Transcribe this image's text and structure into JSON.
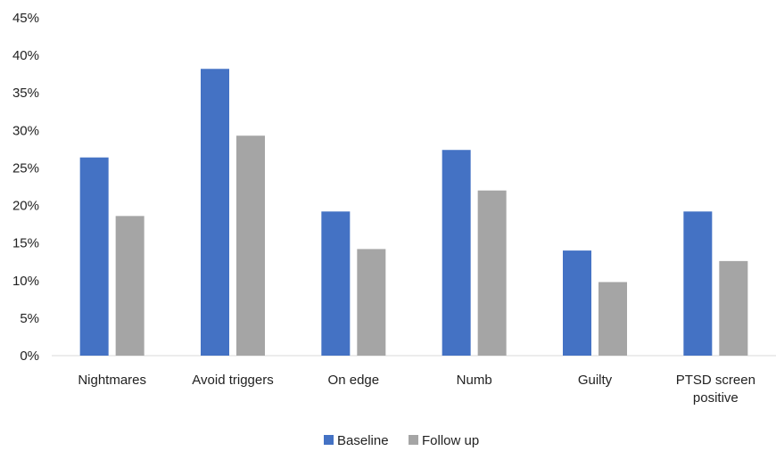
{
  "chart_data": {
    "type": "bar",
    "title": "",
    "xlabel": "",
    "ylabel": "",
    "categories": [
      [
        "Nightmares"
      ],
      [
        "Avoid triggers"
      ],
      [
        "On edge"
      ],
      [
        "Numb"
      ],
      [
        "Guilty"
      ],
      [
        "PTSD screen",
        "positive"
      ]
    ],
    "series": [
      {
        "name": "Baseline",
        "color": "#4472C4",
        "values": [
          26.4,
          38.2,
          19.2,
          27.4,
          14.0,
          19.2
        ]
      },
      {
        "name": "Follow up",
        "color": "#A5A5A5",
        "values": [
          18.6,
          29.3,
          14.2,
          22.0,
          9.8,
          12.6
        ]
      }
    ],
    "ylim": [
      0,
      45
    ],
    "yticks": [
      "0%",
      "5%",
      "10%",
      "15%",
      "20%",
      "25%",
      "30%",
      "35%",
      "40%",
      "45%"
    ],
    "grid": false,
    "legend": "bottom-center",
    "axis_color": "#D9D9D9"
  }
}
